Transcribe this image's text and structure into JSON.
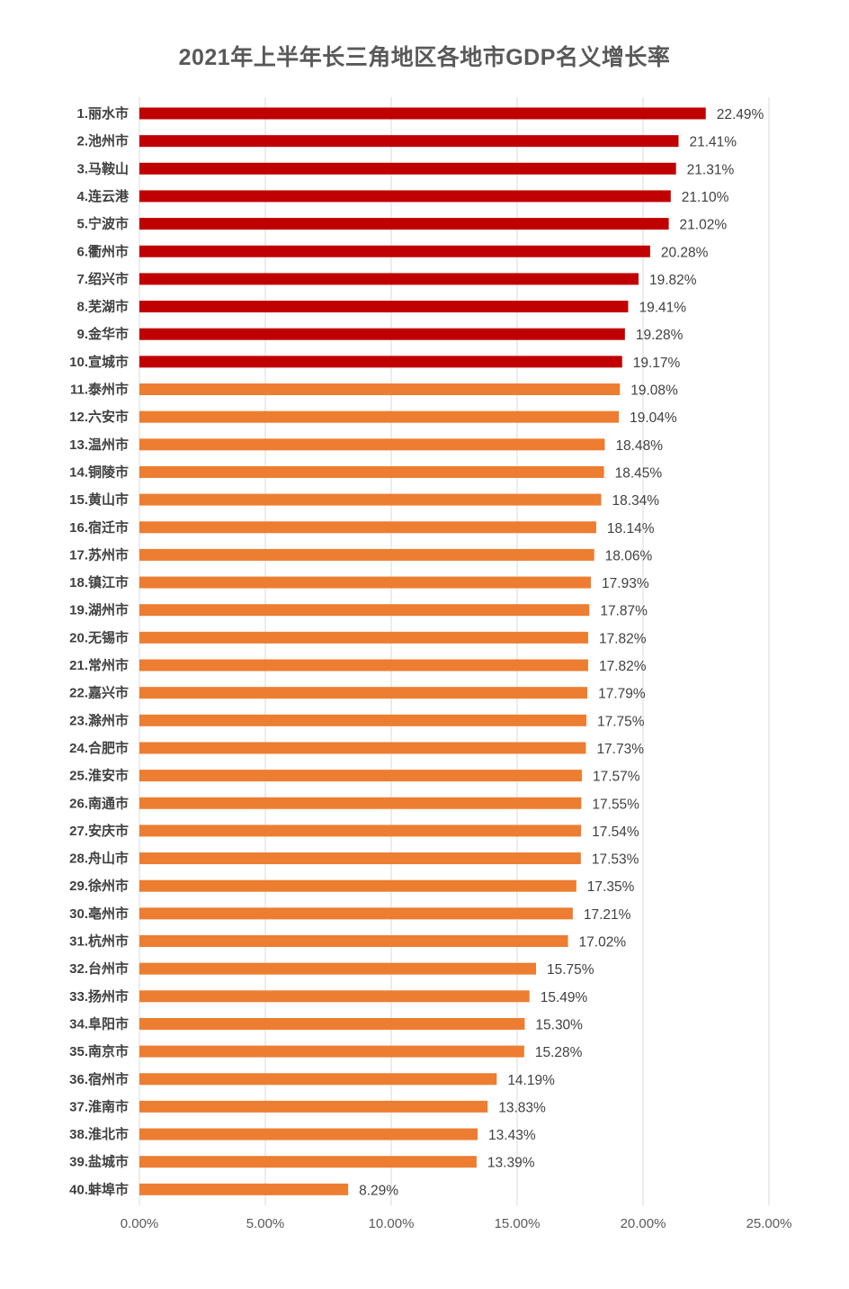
{
  "chart_data": {
    "type": "bar",
    "orientation": "horizontal",
    "title": "2021年上半年长三角地区各地市GDP名义增长率",
    "xlabel": "",
    "ylabel": "",
    "xlim": [
      0,
      25
    ],
    "x_ticks": [
      "0.00%",
      "5.00%",
      "10.00%",
      "15.00%",
      "20.00%",
      "25.00%"
    ],
    "grid": "vertical",
    "legend": "none",
    "colors": {
      "top10": "#C00000",
      "rest": "#ED7D31",
      "grid": "#D9D9D9"
    },
    "highlight_count": 10,
    "categories": [
      "1.丽水市",
      "2.池州市",
      "3.马鞍山",
      "4.连云港",
      "5.宁波市",
      "6.衢州市",
      "7.绍兴市",
      "8.芜湖市",
      "9.金华市",
      "10.宣城市",
      "11.泰州市",
      "12.六安市",
      "13.温州市",
      "14.铜陵市",
      "15.黄山市",
      "16.宿迁市",
      "17.苏州市",
      "18.镇江市",
      "19.湖州市",
      "20.无锡市",
      "21.常州市",
      "22.嘉兴市",
      "23.滁州市",
      "24.合肥市",
      "25.淮安市",
      "26.南通市",
      "27.安庆市",
      "28.舟山市",
      "29.徐州市",
      "30.亳州市",
      "31.杭州市",
      "32.台州市",
      "33.扬州市",
      "34.阜阳市",
      "35.南京市",
      "36.宿州市",
      "37.淮南市",
      "38.淮北市",
      "39.盐城市",
      "40.蚌埠市"
    ],
    "values": [
      22.49,
      21.41,
      21.31,
      21.1,
      21.02,
      20.28,
      19.82,
      19.41,
      19.28,
      19.17,
      19.08,
      19.04,
      18.48,
      18.45,
      18.34,
      18.14,
      18.06,
      17.93,
      17.87,
      17.82,
      17.82,
      17.79,
      17.75,
      17.73,
      17.57,
      17.55,
      17.54,
      17.53,
      17.35,
      17.21,
      17.02,
      15.75,
      15.49,
      15.3,
      15.28,
      14.19,
      13.83,
      13.43,
      13.39,
      8.29
    ],
    "value_labels": [
      "22.49%",
      "21.41%",
      "21.31%",
      "21.10%",
      "21.02%",
      "20.28%",
      "19.82%",
      "19.41%",
      "19.28%",
      "19.17%",
      "19.08%",
      "19.04%",
      "18.48%",
      "18.45%",
      "18.34%",
      "18.14%",
      "18.06%",
      "17.93%",
      "17.87%",
      "17.82%",
      "17.82%",
      "17.79%",
      "17.75%",
      "17.73%",
      "17.57%",
      "17.55%",
      "17.54%",
      "17.53%",
      "17.35%",
      "17.21%",
      "17.02%",
      "15.75%",
      "15.49%",
      "15.30%",
      "15.28%",
      "14.19%",
      "13.83%",
      "13.43%",
      "13.39%",
      "8.29%"
    ]
  }
}
